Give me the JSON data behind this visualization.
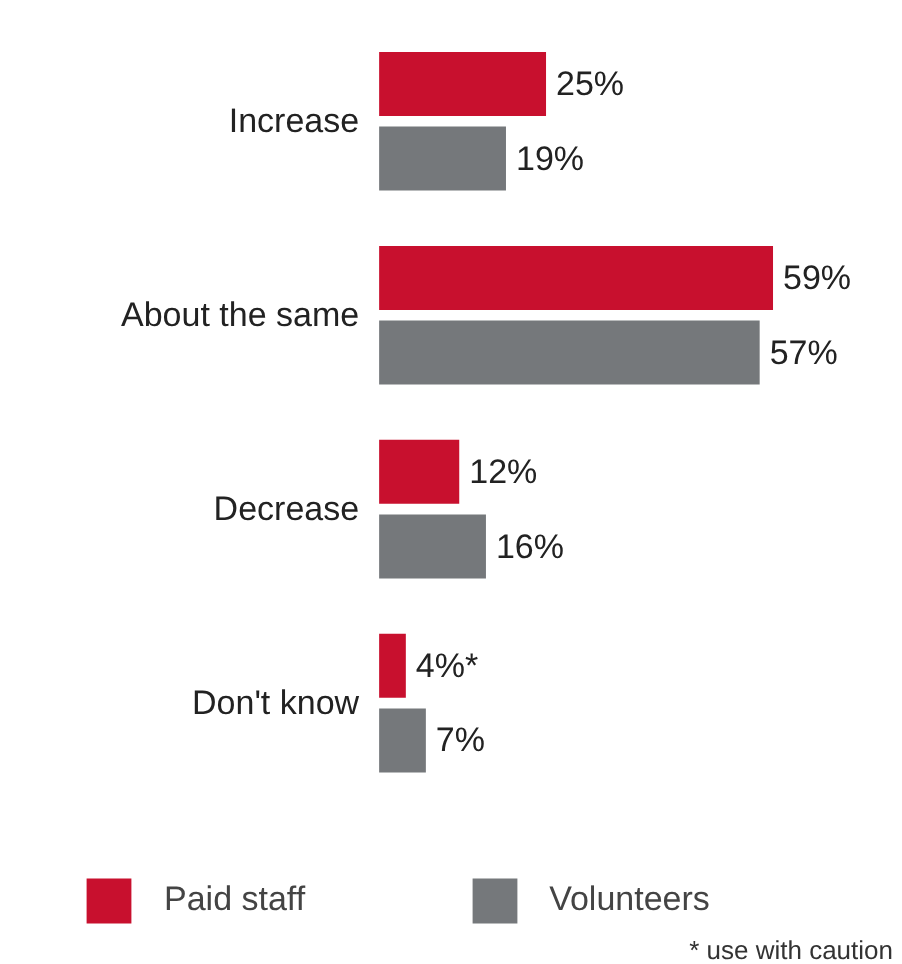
{
  "chart_data": {
    "type": "bar",
    "orientation": "horizontal",
    "categories": [
      "Increase",
      "About the same",
      "Decrease",
      "Don't know"
    ],
    "series": [
      {
        "name": "Paid staff",
        "color": "#c8102e",
        "values": [
          25,
          59,
          12,
          4
        ],
        "value_labels": [
          "25%",
          "59%",
          "12%",
          "4%*"
        ]
      },
      {
        "name": "Volunteers",
        "color": "#75787b",
        "values": [
          19,
          57,
          16,
          7
        ],
        "value_labels": [
          "19%",
          "57%",
          "16%",
          "7%"
        ]
      }
    ],
    "legend": "bottom",
    "grid": false,
    "annotations": [
      "* use with caution"
    ]
  }
}
